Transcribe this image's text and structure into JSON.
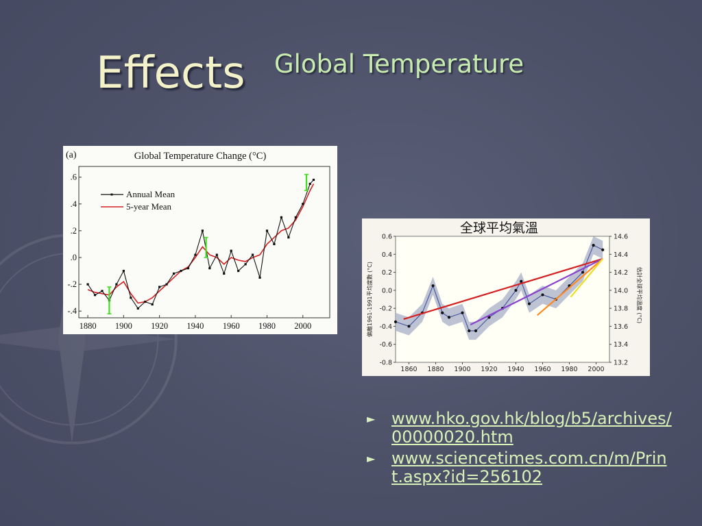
{
  "slide": {
    "title": "Effects",
    "subtitle": "Global Temperature"
  },
  "links": [
    {
      "text": "www.hko.gov.hk/blog/b5/archives/00000020.htm"
    },
    {
      "text": "www.sciencetimes.com.cn/m/Print.aspx?id=256102"
    }
  ],
  "chart_data": [
    {
      "type": "line",
      "panel_label": "(a)",
      "title": "Global Temperature Change (°C)",
      "xlabel": "",
      "ylabel": "",
      "xlim": [
        1875,
        2015
      ],
      "ylim": [
        -0.45,
        0.68
      ],
      "x_ticks": [
        1880,
        1900,
        1920,
        1940,
        1960,
        1980,
        2000
      ],
      "y_ticks": [
        -0.4,
        -0.2,
        0.0,
        0.2,
        0.4,
        0.6
      ],
      "y_tick_labels": [
        "-.4",
        "-.2",
        ".0",
        ".2",
        ".4",
        ".6"
      ],
      "grid": false,
      "legend_position": "top-left",
      "colors": {
        "annual": "#111111",
        "five_year": "#d42020",
        "error_bar": "#44dd22"
      },
      "series": [
        {
          "name": "Annual Mean",
          "x": [
            1880,
            1884,
            1888,
            1892,
            1896,
            1900,
            1904,
            1908,
            1912,
            1916,
            1920,
            1924,
            1928,
            1932,
            1936,
            1940,
            1944,
            1948,
            1952,
            1956,
            1960,
            1964,
            1968,
            1972,
            1976,
            1980,
            1984,
            1988,
            1992,
            1996,
            2000,
            2004,
            2006
          ],
          "values": [
            -0.2,
            -0.28,
            -0.25,
            -0.32,
            -0.2,
            -0.1,
            -0.3,
            -0.38,
            -0.33,
            -0.35,
            -0.22,
            -0.2,
            -0.12,
            -0.1,
            -0.08,
            0.02,
            0.2,
            -0.08,
            0.02,
            -0.12,
            0.05,
            -0.1,
            -0.05,
            0.02,
            -0.15,
            0.2,
            0.1,
            0.3,
            0.15,
            0.3,
            0.4,
            0.55,
            0.58
          ]
        },
        {
          "name": "5-year Mean",
          "x": [
            1880,
            1884,
            1888,
            1892,
            1896,
            1900,
            1904,
            1908,
            1912,
            1916,
            1920,
            1924,
            1928,
            1932,
            1936,
            1940,
            1944,
            1948,
            1952,
            1956,
            1960,
            1964,
            1968,
            1972,
            1976,
            1980,
            1984,
            1988,
            1992,
            1996,
            2000,
            2004,
            2006
          ],
          "values": [
            -0.24,
            -0.26,
            -0.27,
            -0.28,
            -0.22,
            -0.18,
            -0.27,
            -0.34,
            -0.33,
            -0.3,
            -0.25,
            -0.2,
            -0.15,
            -0.1,
            -0.07,
            0.0,
            0.08,
            0.02,
            0.0,
            -0.05,
            0.0,
            -0.02,
            -0.03,
            0.0,
            0.02,
            0.1,
            0.15,
            0.2,
            0.22,
            0.28,
            0.38,
            0.5,
            0.55
          ]
        }
      ],
      "error_bars": [
        {
          "x": 1892,
          "low": -0.42,
          "high": -0.22
        },
        {
          "x": 1946,
          "low": 0.0,
          "high": 0.15
        },
        {
          "x": 2002,
          "low": 0.5,
          "high": 0.62
        }
      ]
    },
    {
      "type": "line",
      "title": "全球平均氣溫",
      "xlabel": "",
      "ylabel": "偏離1961-1991平均度數 (°C)",
      "ylabel_right": "估計全球平均溫度 (°C)",
      "xlim": [
        1850,
        2010
      ],
      "ylim": [
        -0.8,
        0.6
      ],
      "ylim_right": [
        13.2,
        14.6
      ],
      "x_ticks": [
        1860,
        1880,
        1900,
        1920,
        1940,
        1960,
        1980,
        2000
      ],
      "y_ticks": [
        -0.8,
        -0.6,
        -0.4,
        -0.2,
        0.0,
        0.2,
        0.4,
        0.6
      ],
      "y_tick_labels": [
        "-0.8",
        "-0.6",
        "-0.4",
        "-0.2",
        "0.0",
        "0.2",
        "0.4",
        "0.6"
      ],
      "y_ticks_right": [
        13.2,
        13.4,
        13.6,
        13.8,
        14.0,
        14.2,
        14.4,
        14.6
      ],
      "y_tick_labels_right": [
        "13.2",
        "13.4",
        "13.6",
        "13.8",
        "14.0",
        "14.2",
        "14.4",
        "14.6"
      ],
      "grid": false,
      "colors": {
        "points": "#111111",
        "band": "#a8afc8",
        "smooth": "#4a5aa0"
      },
      "series": [
        {
          "name": "",
          "x": [
            1850,
            1860,
            1870,
            1878,
            1885,
            1890,
            1900,
            1905,
            1910,
            1920,
            1930,
            1940,
            1944,
            1950,
            1960,
            1970,
            1980,
            1990,
            1998,
            2005
          ],
          "values": [
            -0.35,
            -0.4,
            -0.25,
            0.05,
            -0.25,
            -0.3,
            -0.25,
            -0.45,
            -0.45,
            -0.3,
            -0.2,
            0.0,
            0.1,
            -0.15,
            -0.05,
            -0.1,
            0.05,
            0.2,
            0.5,
            0.45
          ]
        }
      ],
      "trend_lines": [
        {
          "from_year": 1856,
          "to_year": 2005,
          "slope_per_decade": 0.045,
          "color": "#d42020"
        },
        {
          "from_year": 1906,
          "to_year": 2005,
          "slope_per_decade": 0.074,
          "color": "#8844cc"
        },
        {
          "from_year": 1956,
          "to_year": 2005,
          "slope_per_decade": 0.128,
          "color": "#ff8820"
        },
        {
          "from_year": 1981,
          "to_year": 2005,
          "slope_per_decade": 0.177,
          "color": "#eedd22"
        }
      ]
    }
  ]
}
